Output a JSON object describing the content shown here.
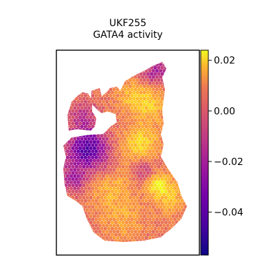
{
  "chart_data": {
    "type": "heatmap",
    "title": "UKF255",
    "subtitle": "GATA4 activity",
    "xlabel": "",
    "ylabel": "",
    "grid": false,
    "colormap": "plasma",
    "colorbar": {
      "vmin": -0.057,
      "vmax": 0.024,
      "ticks": [
        0.02,
        0.0,
        -0.02,
        -0.04
      ],
      "tick_labels": [
        "0.02",
        "0.00",
        "−0.02",
        "−0.04"
      ]
    }
  }
}
